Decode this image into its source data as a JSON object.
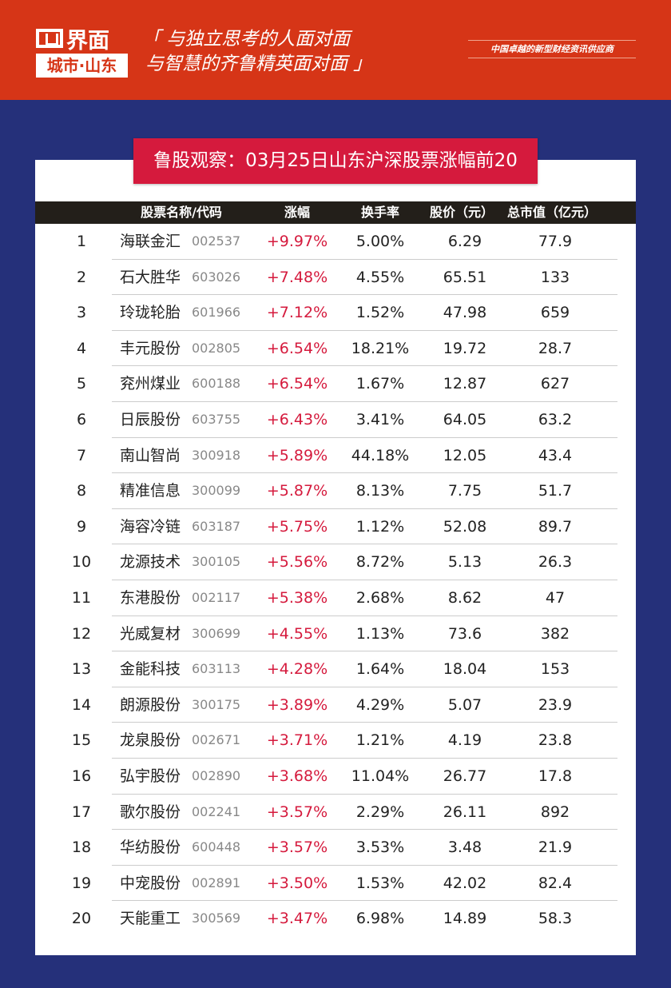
{
  "header": {
    "logo_text": "界面",
    "logo_city": "城市·山东",
    "slogan_line1": "「 与独立思考的人面对面",
    "slogan_line2": "与智慧的齐鲁精英面对面 」",
    "tagline": "中国卓越的新型财经资讯供应商",
    "bg_color": "#d63517"
  },
  "title": "鲁股观察：03月25日山东沪深股票涨幅前20",
  "table": {
    "headers": {
      "name": "股票名称/代码",
      "change": "涨幅",
      "turnover": "换手率",
      "price": "股价（元）",
      "mcap": "总市值（亿元）"
    },
    "rows": [
      {
        "rank": "1",
        "name": "海联金汇",
        "code": "002537",
        "change": "+9.97%",
        "turnover": "5.00%",
        "price": "6.29",
        "mcap": "77.9"
      },
      {
        "rank": "2",
        "name": "石大胜华",
        "code": "603026",
        "change": "+7.48%",
        "turnover": "4.55%",
        "price": "65.51",
        "mcap": "133"
      },
      {
        "rank": "3",
        "name": "玲珑轮胎",
        "code": "601966",
        "change": "+7.12%",
        "turnover": "1.52%",
        "price": "47.98",
        "mcap": "659"
      },
      {
        "rank": "4",
        "name": "丰元股份",
        "code": "002805",
        "change": "+6.54%",
        "turnover": "18.21%",
        "price": "19.72",
        "mcap": "28.7"
      },
      {
        "rank": "5",
        "name": "兖州煤业",
        "code": "600188",
        "change": "+6.54%",
        "turnover": "1.67%",
        "price": "12.87",
        "mcap": "627"
      },
      {
        "rank": "6",
        "name": "日辰股份",
        "code": "603755",
        "change": "+6.43%",
        "turnover": "3.41%",
        "price": "64.05",
        "mcap": "63.2"
      },
      {
        "rank": "7",
        "name": "南山智尚",
        "code": "300918",
        "change": "+5.89%",
        "turnover": "44.18%",
        "price": "12.05",
        "mcap": "43.4"
      },
      {
        "rank": "8",
        "name": "精准信息",
        "code": "300099",
        "change": "+5.87%",
        "turnover": "8.13%",
        "price": "7.75",
        "mcap": "51.7"
      },
      {
        "rank": "9",
        "name": "海容冷链",
        "code": "603187",
        "change": "+5.75%",
        "turnover": "1.12%",
        "price": "52.08",
        "mcap": "89.7"
      },
      {
        "rank": "10",
        "name": "龙源技术",
        "code": "300105",
        "change": "+5.56%",
        "turnover": "8.72%",
        "price": "5.13",
        "mcap": "26.3"
      },
      {
        "rank": "11",
        "name": "东港股份",
        "code": "002117",
        "change": "+5.38%",
        "turnover": "2.68%",
        "price": "8.62",
        "mcap": "47"
      },
      {
        "rank": "12",
        "name": "光威复材",
        "code": "300699",
        "change": "+4.55%",
        "turnover": "1.13%",
        "price": "73.6",
        "mcap": "382"
      },
      {
        "rank": "13",
        "name": "金能科技",
        "code": "603113",
        "change": "+4.28%",
        "turnover": "1.64%",
        "price": "18.04",
        "mcap": "153"
      },
      {
        "rank": "14",
        "name": "朗源股份",
        "code": "300175",
        "change": "+3.89%",
        "turnover": "4.29%",
        "price": "5.07",
        "mcap": "23.9"
      },
      {
        "rank": "15",
        "name": "龙泉股份",
        "code": "002671",
        "change": "+3.71%",
        "turnover": "1.21%",
        "price": "4.19",
        "mcap": "23.8"
      },
      {
        "rank": "16",
        "name": "弘宇股份",
        "code": "002890",
        "change": "+3.68%",
        "turnover": "11.04%",
        "price": "26.77",
        "mcap": "17.8"
      },
      {
        "rank": "17",
        "name": "歌尔股份",
        "code": "002241",
        "change": "+3.57%",
        "turnover": "2.29%",
        "price": "26.11",
        "mcap": "892"
      },
      {
        "rank": "18",
        "name": "华纺股份",
        "code": "600448",
        "change": "+3.57%",
        "turnover": "3.53%",
        "price": "3.48",
        "mcap": "21.9"
      },
      {
        "rank": "19",
        "name": "中宠股份",
        "code": "002891",
        "change": "+3.50%",
        "turnover": "1.53%",
        "price": "42.02",
        "mcap": "82.4"
      },
      {
        "rank": "20",
        "name": "天能重工",
        "code": "300569",
        "change": "+3.47%",
        "turnover": "6.98%",
        "price": "14.89",
        "mcap": "58.3"
      }
    ]
  },
  "colors": {
    "accent_red": "#d51a3d",
    "navy": "#25307a",
    "header_bar": "#231f1a"
  }
}
